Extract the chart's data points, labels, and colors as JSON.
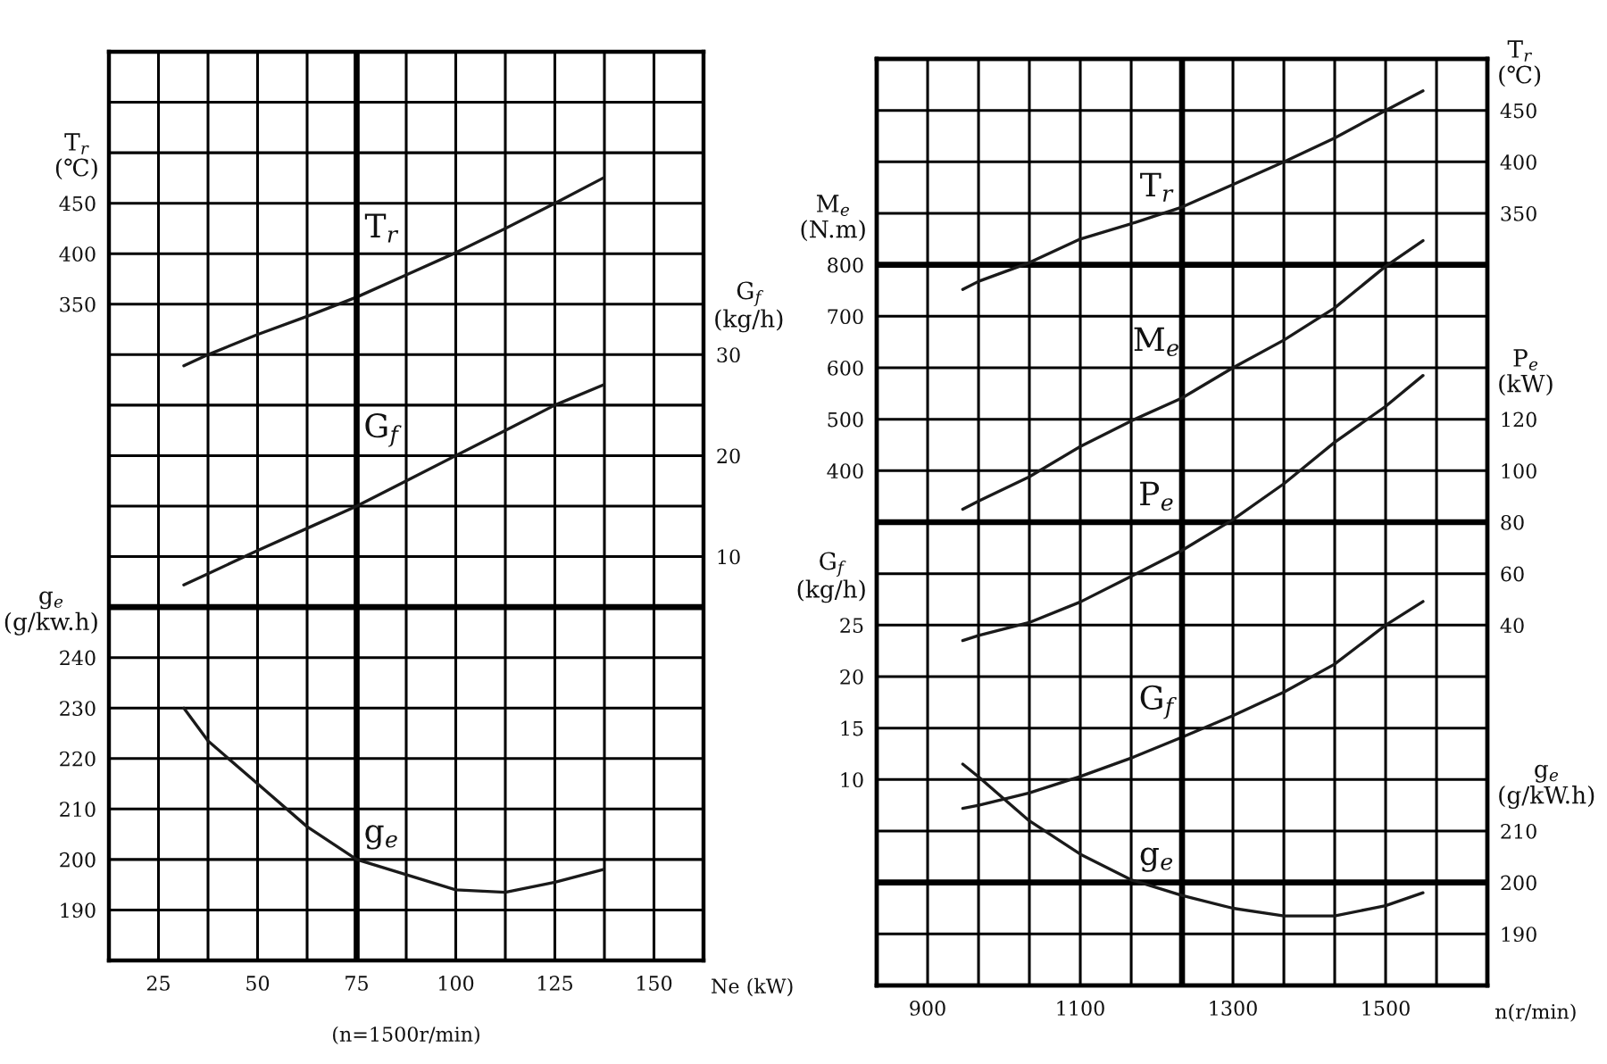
{
  "chart_data": [
    {
      "type": "line",
      "xlabel": "Ne (kW)",
      "ylabel": "T$_{r}$\n(℃)",
      "y2label": "G$_{f}$\n(kg/h)",
      "y3label": "g$_{e}$\n(g/kw.h)",
      "annotations": [
        "(n=1500r/min)"
      ],
      "xlim": [
        12.5,
        162.5
      ],
      "xticks": [
        25,
        {
          "value": 37.5,
          "label": null
        },
        50,
        {
          "value": 62.5,
          "label": null
        },
        75,
        {
          "value": 87.5,
          "label": null
        },
        100,
        {
          "value": 112.5,
          "label": null
        },
        125,
        {
          "value": 137.5,
          "label": null
        },
        150
      ],
      "ylim": [
        -300,
        600
      ],
      "yticks": [
        {
          "value": -250,
          "label": null
        },
        {
          "value": -200,
          "label": null
        },
        {
          "value": -150,
          "label": null
        },
        {
          "value": -100,
          "label": null
        },
        {
          "value": -50,
          "label": null
        },
        {
          "value": 0,
          "label": null
        },
        {
          "value": 100,
          "label": null
        },
        {
          "value": 150,
          "label": null
        },
        {
          "value": 200,
          "label": null
        },
        {
          "value": 250,
          "label": null
        },
        {
          "value": 300,
          "label": null
        },
        350,
        400,
        450,
        {
          "value": 500,
          "label": null
        },
        {
          "value": 550,
          "label": null
        }
      ],
      "y2lim": [
        -30,
        60
      ],
      "y2ticks": [
        10,
        20,
        30
      ],
      "y3lim": [
        180,
        360
      ],
      "y3ticks": [
        190,
        200,
        210,
        220,
        230,
        240
      ],
      "grid": true,
      "ref_lines": [
        {
          "axis": "x",
          "value": 75
        },
        {
          "axis": "y3",
          "value": 250
        }
      ],
      "x": [
        31.4,
        37.5,
        50,
        62.5,
        75,
        87.5,
        100,
        112.5,
        125,
        137.2
      ],
      "series": [
        {
          "name": "T$_{r}$",
          "color": "#1a1a1a",
          "values": [
            289,
            300,
            320,
            338,
            357,
            379,
            401,
            425,
            450,
            475
          ]
        },
        {
          "name": "G$_{f}$",
          "color": "#1a1a1a",
          "axis": "y2",
          "values": [
            7.2,
            8.3,
            10.6,
            12.8,
            15,
            17.5,
            20,
            22.5,
            25,
            27
          ]
        },
        {
          "name": "g$_{e}$",
          "color": "#1a1a1a",
          "axis": "y3",
          "values": [
            230,
            223.5,
            215,
            206.5,
            200,
            197,
            194,
            193.5,
            195.5,
            198
          ]
        }
      ]
    },
    {
      "type": "line",
      "xlabel": "n(r/min)",
      "ylabel": "G$_{f}$\n(kg/h)",
      "y2label": "T$_{r}$\n(℃)",
      "y3label": "P$_{e}$\n(kW)",
      "xlim": [
        833.3,
        1633.3
      ],
      "xticks": [
        900,
        {
          "value": 966.7,
          "label": null
        },
        {
          "value": 1033.3,
          "label": null
        },
        1100,
        {
          "value": 1166.7,
          "label": null
        },
        1300,
        {
          "value": 1366.7,
          "label": null
        },
        {
          "value": 1433.3,
          "label": null
        },
        1500,
        {
          "value": 1566.7,
          "label": null
        }
      ],
      "ylim": [
        -10,
        80
      ],
      "yticks": [
        {
          "value": -5,
          "label": null
        },
        {
          "value": 5,
          "label": null
        },
        10,
        15,
        20,
        25,
        {
          "value": 30,
          "label": null
        },
        {
          "value": 40,
          "label": null
        },
        {
          "value": 45,
          "label": null
        },
        {
          "value": 50,
          "label": null
        },
        {
          "value": 55,
          "label": null
        },
        {
          "value": 65,
          "label": null
        },
        {
          "value": 70,
          "label": null
        },
        {
          "value": 75,
          "label": null
        }
      ],
      "y2lim": [
        -400,
        500
      ],
      "y2ticks": [
        350,
        400,
        450
      ],
      "y3lim": [
        -100,
        260
      ],
      "y3ticks": [
        40,
        60,
        80,
        100,
        120
      ],
      "grid": true,
      "ref_lines": [
        {
          "axis": "x",
          "value": 1233.3
        },
        {
          "axis": "y",
          "value": 60
        },
        {
          "axis": "y",
          "value": 35
        },
        {
          "axis": "y",
          "value": 0
        }
      ],
      "x": [
        946,
        967,
        1033,
        1100,
        1167,
        1233,
        1300,
        1367,
        1433,
        1500,
        1549
      ],
      "series": [
        {
          "name": "T$_{r}$",
          "color": "#1a1a1a",
          "axis": "y2",
          "values": [
            276,
            284,
            302,
            325,
            340,
            356,
            378,
            400,
            423,
            450,
            469
          ]
        },
        {
          "name": "P$_{e}$",
          "color": "#1a1a1a",
          "axis": "y3",
          "values": [
            34,
            36,
            41,
            49,
            59,
            69,
            81,
            95,
            111,
            125,
            137
          ]
        },
        {
          "name": "G$_{f}$",
          "color": "#1a1a1a",
          "values": [
            7.2,
            7.5,
            8.7,
            10.3,
            12.1,
            14.1,
            16.2,
            18.5,
            21.2,
            25,
            27.3
          ]
        }
      ]
    },
    {
      "type": "line",
      "tick_labels": "y",
      "ylabel": "M$_{e}$\n(N.m)",
      "y2label": "g$_{e}$\n(g/kW.h)",
      "xlim": [
        833.3,
        1633.3
      ],
      "ylim": [
        -600,
        1200
      ],
      "yticks": [
        400,
        500,
        600,
        700,
        800
      ],
      "y2lim": [
        180,
        360
      ],
      "y2ticks": [
        190,
        200,
        210
      ],
      "x": [
        946,
        967,
        1033,
        1100,
        1167,
        1233,
        1300,
        1367,
        1433,
        1500,
        1549
      ],
      "series": [
        {
          "name": "M$_{e}$",
          "color": "#1a1a1a",
          "values": [
            325,
            341,
            388,
            447,
            497,
            541,
            600,
            654,
            716,
            797,
            847
          ]
        },
        {
          "name": "g$_{e}$",
          "color": "#1a1a1a",
          "axis": "y2",
          "values": [
            223,
            220.5,
            212,
            205.5,
            200.5,
            197.5,
            195,
            193.5,
            193.5,
            195.5,
            198
          ]
        }
      ]
    }
  ]
}
